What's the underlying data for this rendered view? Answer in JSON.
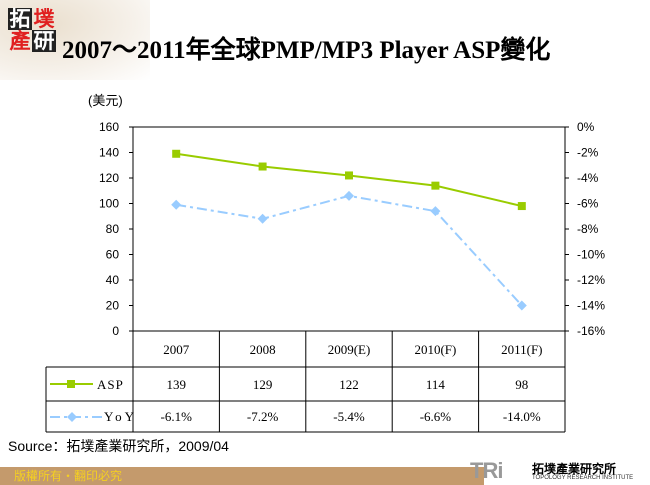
{
  "header": {
    "title": "2007～2011年全球PMP/MP3 Player ASP變化",
    "logo": "拓墣產研"
  },
  "chart_data": {
    "type": "line",
    "title": "2007～2011年全球PMP/MP3 Player ASP變化",
    "ylabel": "(美元)",
    "categories": [
      "2007",
      "2008",
      "2009(E)",
      "2010(F)",
      "2011(F)"
    ],
    "ylim": [
      0,
      160
    ],
    "yticks": [
      "0",
      "20",
      "40",
      "60",
      "80",
      "100",
      "120",
      "140",
      "160"
    ],
    "y2lim": [
      -16,
      0
    ],
    "y2ticks": [
      "0%",
      "-2%",
      "-4%",
      "-6%",
      "-8%",
      "-10%",
      "-12%",
      "-14%",
      "-16%"
    ],
    "series": [
      {
        "name": "ASP",
        "axis": "left",
        "values": [
          139,
          129,
          122,
          114,
          98
        ],
        "labels": [
          "139",
          "129",
          "122",
          "114",
          "98"
        ],
        "color": "#99cc00",
        "marker": "square"
      },
      {
        "name": "YoY",
        "axis": "right",
        "values": [
          -6.1,
          -7.2,
          -5.4,
          -6.6,
          -14.0
        ],
        "labels": [
          "-6.1%",
          "-7.2%",
          "-5.4%",
          "-6.6%",
          "-14.0%"
        ],
        "color": "#99ccff",
        "marker": "diamond",
        "dash": "dash-dot"
      }
    ],
    "grid": false,
    "legend": "data-table"
  },
  "source": "Source：拓墣產業研究所，2009/04",
  "footer": {
    "copyright": "版權所有・翻印必究",
    "brand": "TRi",
    "brand_cn": "拓墣產業研究所",
    "brand_en": "TOPOLOGY RESEARCH INSTITUTE"
  }
}
